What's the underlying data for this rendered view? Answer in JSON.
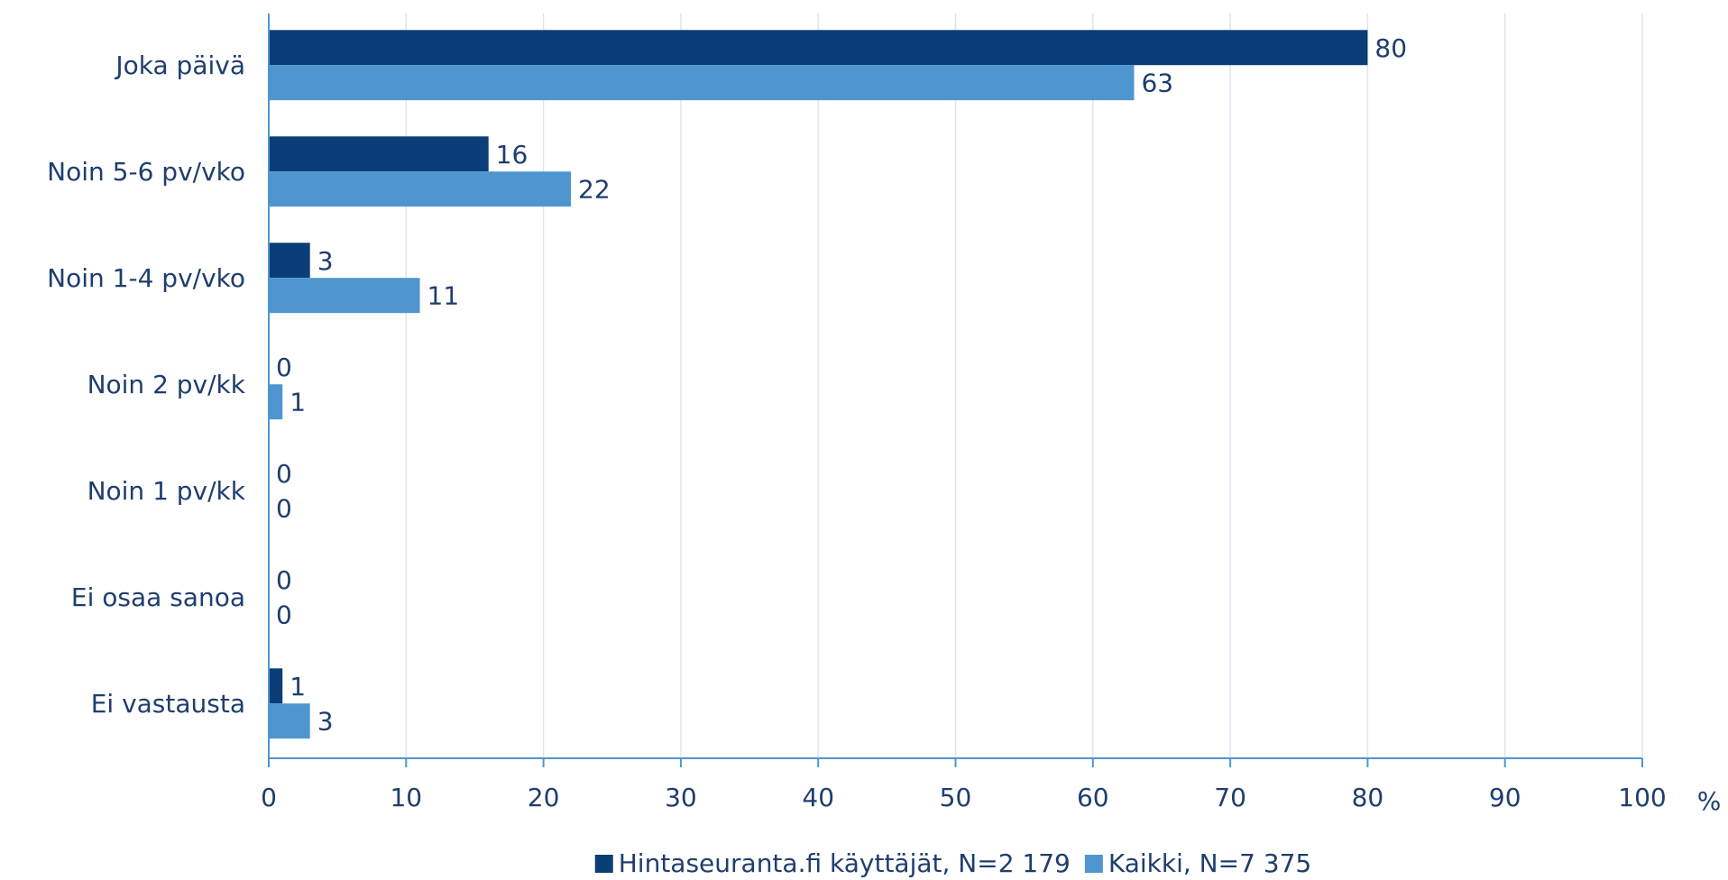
{
  "chart_data": {
    "type": "hbar",
    "categories": [
      "Joka päivä",
      "Noin 5-6 pv/vko",
      "Noin 1-4 pv/vko",
      "Noin 2 pv/kk",
      "Noin 1 pv/kk",
      "Ei osaa sanoa",
      "Ei vastausta"
    ],
    "series": [
      {
        "name": "Hintaseuranta.fi käyttäjät, N=2 179",
        "color": "#0b3d78",
        "values": [
          80,
          16,
          3,
          0,
          0,
          0,
          1
        ]
      },
      {
        "name": "Kaikki, N=7 375",
        "color": "#4f96d0",
        "values": [
          63,
          22,
          11,
          1,
          0,
          0,
          3
        ]
      }
    ],
    "xlabel": "%",
    "xlim": [
      0,
      100
    ],
    "xticks": [
      0,
      10,
      20,
      30,
      40,
      50,
      60,
      70,
      80,
      90,
      100
    ],
    "grid": true,
    "legend": "bottom"
  }
}
